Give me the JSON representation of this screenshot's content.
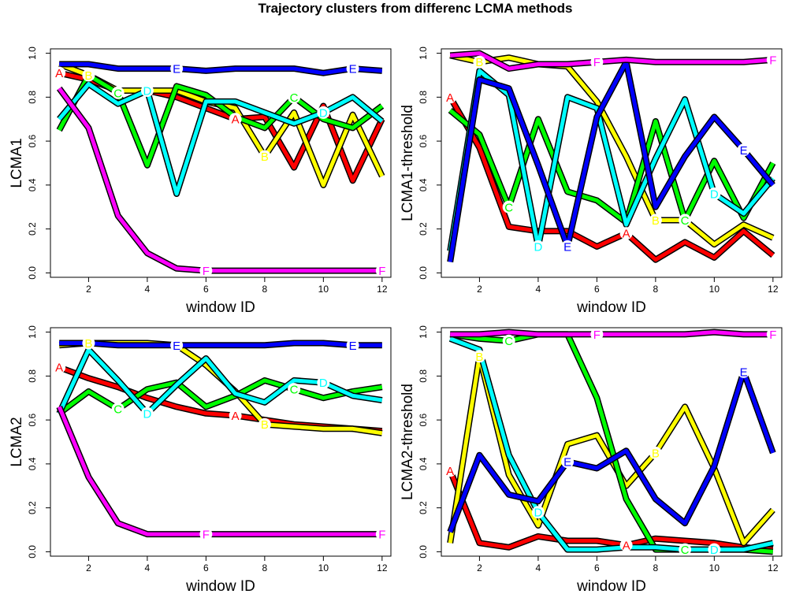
{
  "title": "Trajectory clusters from differenc LCMA methods",
  "chart_data": [
    {
      "type": "line",
      "xlabel": "window ID",
      "ylabel": "LCMA1",
      "x": [
        1,
        2,
        3,
        4,
        5,
        6,
        7,
        8,
        9,
        10,
        11,
        12
      ],
      "xlim": [
        0.7,
        12.3
      ],
      "ylim": [
        -0.02,
        1.02
      ],
      "xticks": [
        "2",
        "4",
        "6",
        "8",
        "10",
        "12"
      ],
      "yticks": [
        "0.0",
        "0.2",
        "0.4",
        "0.6",
        "0.8",
        "1.0"
      ],
      "series": [
        {
          "name": "A",
          "color": "#ff0000",
          "values": [
            0.91,
            0.88,
            0.83,
            0.83,
            0.8,
            0.75,
            0.7,
            0.71,
            0.48,
            0.76,
            0.42,
            0.7
          ],
          "label_at": [
            1,
            7
          ]
        },
        {
          "name": "B",
          "color": "#ffff00",
          "values": [
            0.95,
            0.9,
            0.83,
            0.83,
            0.83,
            0.78,
            0.75,
            0.53,
            0.73,
            0.4,
            0.72,
            0.44
          ],
          "label_at": [
            2,
            8
          ]
        },
        {
          "name": "C",
          "color": "#00ff00",
          "values": [
            0.65,
            0.9,
            0.82,
            0.49,
            0.85,
            0.81,
            0.71,
            0.66,
            0.8,
            0.7,
            0.66,
            0.76
          ],
          "label_at": [
            3,
            9
          ]
        },
        {
          "name": "D",
          "color": "#00ffff",
          "values": [
            0.7,
            0.86,
            0.77,
            0.83,
            0.36,
            0.78,
            0.78,
            0.73,
            0.68,
            0.73,
            0.8,
            0.69
          ],
          "label_at": [
            4,
            10
          ]
        },
        {
          "name": "E",
          "color": "#0000ff",
          "values": [
            0.95,
            0.95,
            0.93,
            0.93,
            0.93,
            0.92,
            0.93,
            0.93,
            0.93,
            0.91,
            0.93,
            0.92
          ],
          "label_at": [
            5,
            11
          ]
        },
        {
          "name": "F",
          "color": "#ff00ff",
          "values": [
            0.84,
            0.66,
            0.26,
            0.09,
            0.02,
            0.01,
            0.01,
            0.01,
            0.01,
            0.01,
            0.01,
            0.01
          ],
          "label_at": [
            6,
            12
          ]
        }
      ]
    },
    {
      "type": "line",
      "xlabel": "window ID",
      "ylabel": "LCMA1-threshold",
      "x": [
        1,
        2,
        3,
        4,
        5,
        6,
        7,
        8,
        9,
        10,
        11,
        12
      ],
      "xlim": [
        0.7,
        12.3
      ],
      "ylim": [
        -0.02,
        1.02
      ],
      "xticks": [
        "2",
        "4",
        "6",
        "8",
        "10",
        "12"
      ],
      "yticks": [
        "0.0",
        "0.2",
        "0.4",
        "0.6",
        "0.8",
        "1.0"
      ],
      "series": [
        {
          "name": "A",
          "color": "#ff0000",
          "values": [
            0.8,
            0.57,
            0.21,
            0.19,
            0.19,
            0.12,
            0.18,
            0.06,
            0.14,
            0.07,
            0.19,
            0.08
          ],
          "label_at": [
            1,
            7
          ]
        },
        {
          "name": "B",
          "color": "#ffff00",
          "values": [
            0.99,
            0.96,
            0.98,
            0.95,
            0.94,
            0.78,
            0.53,
            0.24,
            0.24,
            0.13,
            0.22,
            0.16
          ],
          "label_at": [
            2,
            8
          ]
        },
        {
          "name": "C",
          "color": "#00ff00",
          "values": [
            0.74,
            0.63,
            0.3,
            0.7,
            0.37,
            0.33,
            0.23,
            0.69,
            0.24,
            0.51,
            0.25,
            0.5
          ],
          "label_at": [
            3,
            9
          ]
        },
        {
          "name": "D",
          "color": "#00ffff",
          "values": [
            0.1,
            0.92,
            0.81,
            0.12,
            0.8,
            0.75,
            0.22,
            0.52,
            0.79,
            0.36,
            0.27,
            0.43
          ],
          "label_at": [
            4,
            10
          ]
        },
        {
          "name": "E",
          "color": "#0000ff",
          "values": [
            0.05,
            0.88,
            0.84,
            0.49,
            0.12,
            0.71,
            0.96,
            0.3,
            0.53,
            0.71,
            0.56,
            0.4
          ],
          "label_at": [
            5,
            11
          ]
        },
        {
          "name": "F",
          "color": "#ff00ff",
          "values": [
            0.99,
            1.0,
            0.93,
            0.95,
            0.95,
            0.96,
            0.97,
            0.96,
            0.96,
            0.96,
            0.96,
            0.97
          ],
          "label_at": [
            6,
            12
          ]
        }
      ]
    },
    {
      "type": "line",
      "xlabel": "window ID",
      "ylabel": "LCMA2",
      "x": [
        1,
        2,
        3,
        4,
        5,
        6,
        7,
        8,
        9,
        10,
        11,
        12
      ],
      "xlim": [
        0.7,
        12.3
      ],
      "ylim": [
        -0.02,
        1.02
      ],
      "xticks": [
        "2",
        "4",
        "6",
        "8",
        "10",
        "12"
      ],
      "yticks": [
        "0.0",
        "0.2",
        "0.4",
        "0.6",
        "0.8",
        "1.0"
      ],
      "series": [
        {
          "name": "A",
          "color": "#ff0000",
          "values": [
            0.84,
            0.79,
            0.75,
            0.7,
            0.66,
            0.63,
            0.62,
            0.6,
            0.58,
            0.57,
            0.56,
            0.55
          ],
          "label_at": [
            1,
            7
          ]
        },
        {
          "name": "B",
          "color": "#ffff00",
          "values": [
            0.94,
            0.95,
            0.95,
            0.95,
            0.94,
            0.85,
            0.73,
            0.58,
            0.57,
            0.56,
            0.56,
            0.54
          ],
          "label_at": [
            2,
            8
          ]
        },
        {
          "name": "C",
          "color": "#00ff00",
          "values": [
            0.63,
            0.73,
            0.65,
            0.74,
            0.77,
            0.66,
            0.71,
            0.78,
            0.74,
            0.7,
            0.73,
            0.75
          ],
          "label_at": [
            3,
            9
          ]
        },
        {
          "name": "D",
          "color": "#00ffff",
          "values": [
            0.63,
            0.92,
            0.78,
            0.63,
            0.76,
            0.88,
            0.72,
            0.68,
            0.78,
            0.77,
            0.71,
            0.69
          ],
          "label_at": [
            4,
            10
          ]
        },
        {
          "name": "E",
          "color": "#0000ff",
          "values": [
            0.95,
            0.95,
            0.94,
            0.94,
            0.94,
            0.94,
            0.94,
            0.94,
            0.95,
            0.95,
            0.94,
            0.94
          ],
          "label_at": [
            5,
            11
          ]
        },
        {
          "name": "F",
          "color": "#ff00ff",
          "values": [
            0.66,
            0.34,
            0.13,
            0.08,
            0.08,
            0.08,
            0.08,
            0.08,
            0.08,
            0.08,
            0.08,
            0.08
          ],
          "label_at": [
            6,
            12
          ]
        }
      ]
    },
    {
      "type": "line",
      "xlabel": "window ID",
      "ylabel": "LCMA2-threshold",
      "x": [
        1,
        2,
        3,
        4,
        5,
        6,
        7,
        8,
        9,
        10,
        11,
        12
      ],
      "xlim": [
        0.7,
        12.3
      ],
      "ylim": [
        -0.02,
        1.02
      ],
      "xticks": [
        "2",
        "4",
        "6",
        "8",
        "10",
        "12"
      ],
      "yticks": [
        "0.0",
        "0.2",
        "0.4",
        "0.6",
        "0.8",
        "1.0"
      ],
      "series": [
        {
          "name": "A",
          "color": "#ff0000",
          "values": [
            0.37,
            0.04,
            0.02,
            0.07,
            0.05,
            0.05,
            0.03,
            0.06,
            0.05,
            0.04,
            0.02,
            0.01
          ],
          "label_at": [
            1,
            7
          ]
        },
        {
          "name": "B",
          "color": "#ffff00",
          "values": [
            0.04,
            0.89,
            0.35,
            0.12,
            0.49,
            0.53,
            0.3,
            0.45,
            0.66,
            0.38,
            0.04,
            0.19
          ],
          "label_at": [
            2,
            8
          ]
        },
        {
          "name": "C",
          "color": "#00ff00",
          "values": [
            0.99,
            0.97,
            0.96,
            0.99,
            0.99,
            0.7,
            0.24,
            0.01,
            0.01,
            0.01,
            0.01,
            0.0
          ],
          "label_at": [
            3,
            9
          ]
        },
        {
          "name": "D",
          "color": "#00ffff",
          "values": [
            0.97,
            0.92,
            0.44,
            0.18,
            0.01,
            0.01,
            0.02,
            0.02,
            0.01,
            0.01,
            0.01,
            0.04
          ],
          "label_at": [
            4,
            10
          ]
        },
        {
          "name": "E",
          "color": "#0000ff",
          "values": [
            0.09,
            0.44,
            0.26,
            0.23,
            0.41,
            0.38,
            0.46,
            0.24,
            0.13,
            0.39,
            0.82,
            0.45
          ],
          "label_at": [
            5,
            11
          ]
        },
        {
          "name": "F",
          "color": "#ff00ff",
          "values": [
            0.99,
            0.99,
            1.0,
            0.99,
            0.99,
            0.99,
            0.99,
            0.99,
            0.99,
            1.0,
            0.99,
            0.99
          ],
          "label_at": [
            6,
            12
          ]
        }
      ]
    }
  ]
}
